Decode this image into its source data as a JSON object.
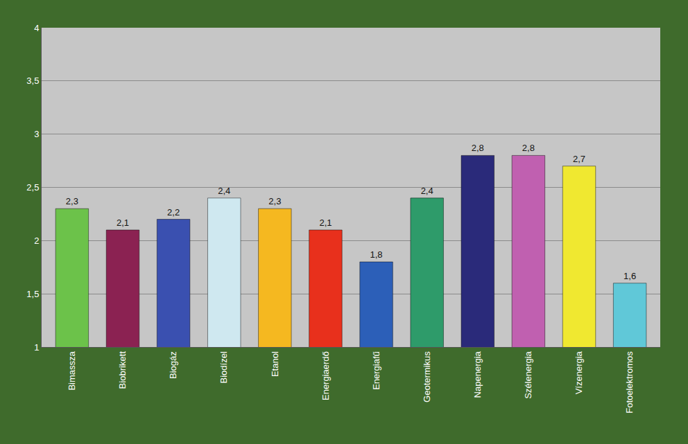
{
  "chart_data": {
    "type": "bar",
    "categories": [
      "Bimassza",
      "Biobrikett",
      "Biogáz",
      "Biodízel",
      "Etanol",
      "Energiaerdő",
      "Energiafű",
      "Geotermikus",
      "Napenergia",
      "Szélenergia",
      "Vízenergia",
      "Fotoelektromos"
    ],
    "values": [
      2.3,
      2.1,
      2.2,
      2.4,
      2.3,
      2.1,
      1.8,
      2.4,
      2.8,
      2.8,
      2.7,
      1.6
    ],
    "value_labels": [
      "2,3",
      "2,1",
      "2,2",
      "2,4",
      "2,3",
      "2,1",
      "1,8",
      "2,4",
      "2,8",
      "2,8",
      "2,7",
      "1,6"
    ],
    "colors": [
      "#6cc24a",
      "#8b2252",
      "#3a50b0",
      "#cfe8f0",
      "#f5b820",
      "#e8301c",
      "#2c5fb8",
      "#2e9b6a",
      "#2a2a7a",
      "#c060b0",
      "#f0e830",
      "#60c8d8"
    ],
    "ylim": [
      1,
      4
    ],
    "yticks": [
      1,
      {
        "value": 1.5,
        "label": "1,5"
      },
      2,
      {
        "value": 2.5,
        "label": "2,5"
      },
      3,
      {
        "value": 3.5,
        "label": "3,5"
      },
      4
    ],
    "grid": true,
    "data_labels": true
  }
}
